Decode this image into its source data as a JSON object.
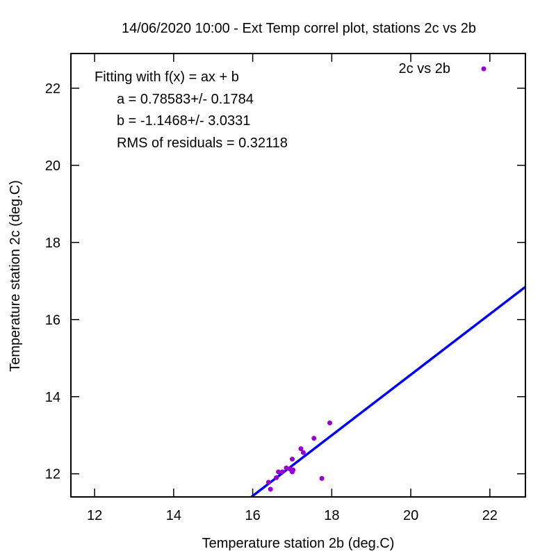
{
  "chart_data": {
    "type": "scatter",
    "title": "14/06/2020 10:00 - Ext Temp correl plot, stations 2c vs 2b",
    "xlabel": "Temperature station 2b (deg.C)",
    "ylabel": "Temperature station 2c (deg.C)",
    "xlim": [
      11.4,
      22.9
    ],
    "ylim": [
      11.4,
      22.9
    ],
    "xticks": [
      "12",
      "14",
      "16",
      "18",
      "20",
      "22"
    ],
    "yticks": [
      "12",
      "14",
      "16",
      "18",
      "20",
      "22"
    ],
    "grid": false,
    "legend_position": "top-right",
    "series": [
      {
        "name": "2c vs 2b",
        "color": "#9400d3",
        "points": [
          [
            16.4,
            11.78
          ],
          [
            16.45,
            11.6
          ],
          [
            16.6,
            11.9
          ],
          [
            16.65,
            12.05
          ],
          [
            16.75,
            12.05
          ],
          [
            16.85,
            12.15
          ],
          [
            16.95,
            12.12
          ],
          [
            17.0,
            12.38
          ],
          [
            17.0,
            12.05
          ],
          [
            17.02,
            12.1
          ],
          [
            17.22,
            12.65
          ],
          [
            17.28,
            12.55
          ],
          [
            17.55,
            12.92
          ],
          [
            17.75,
            11.88
          ],
          [
            17.95,
            13.32
          ]
        ]
      }
    ],
    "fit": {
      "color": "#0000ff",
      "a": 0.78583,
      "b": -1.1468,
      "lines": [
        "Fitting with f(x) = ax + b",
        "a = 0.78583+/- 0.1784",
        "b = -1.1468+/- 3.0331",
        "RMS of residuals = 0.32118"
      ]
    }
  }
}
